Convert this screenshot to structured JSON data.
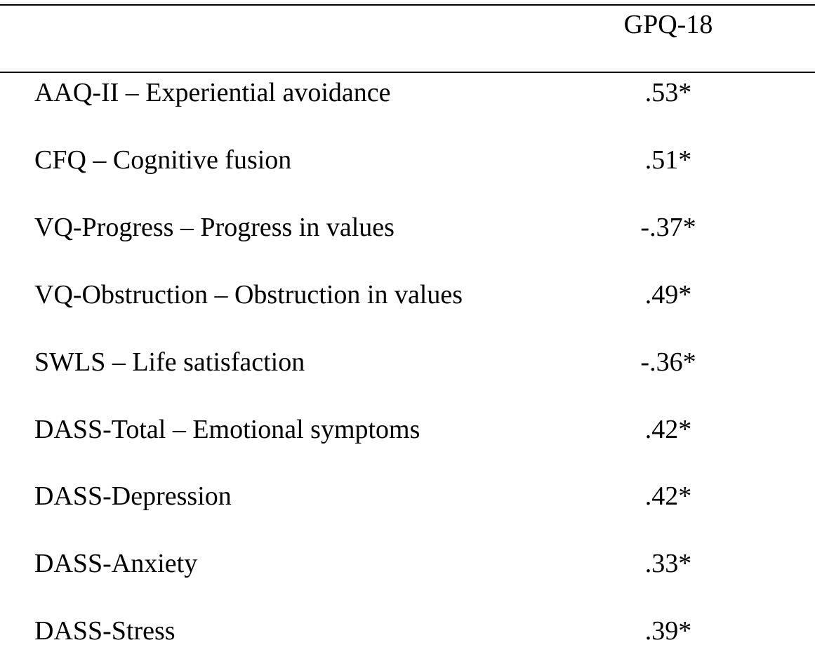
{
  "table": {
    "header": "GPQ-18",
    "rows": [
      [
        "AAQ-II – Experiential avoidance",
        ".53*"
      ],
      [
        "CFQ – Cognitive fusion",
        ".51*"
      ],
      [
        "VQ-Progress – Progress in values",
        "-.37*"
      ],
      [
        "VQ-Obstruction – Obstruction in values",
        ".49*"
      ],
      [
        "SWLS – Life satisfaction",
        "-.36*"
      ],
      [
        "DASS-Total – Emotional symptoms",
        ".42*"
      ],
      [
        "DASS-Depression",
        ".42*"
      ],
      [
        "DASS-Anxiety",
        ".33*"
      ],
      [
        "DASS-Stress",
        ".39*"
      ]
    ]
  }
}
